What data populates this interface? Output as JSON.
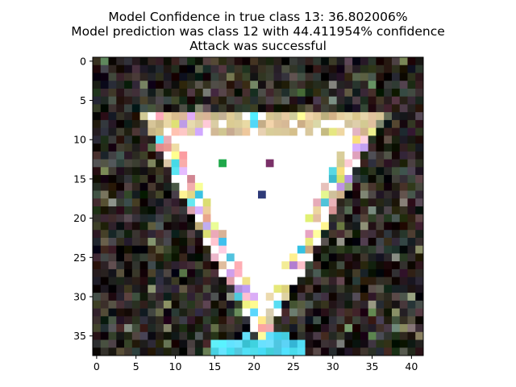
{
  "chart_data": {
    "type": "heatmap",
    "title_lines": [
      "Model Confidence in true class  13:     36.802006%",
      "Model prediction was class   12 with 44.411954% confidence",
      "Attack was successful"
    ],
    "image": {
      "columns": 42,
      "rows": 38,
      "content": "Adversarially perturbed traffic sign: white inverted triangle with pastel pixel noise on a dark textured background",
      "palette": {
        "background_dark": "#1f1b17",
        "background_mid": "#3a3530",
        "sign_white": "#ffffff",
        "border_tan": "#d8c49a",
        "noise_pink": "#f2b7c4",
        "noise_yellow": "#f6f08a",
        "noise_cyan": "#4fd4ee",
        "noise_blue": "#2c3f8f",
        "marker_green": "#1fa84a",
        "marker_purple": "#7a3068",
        "marker_navy": "#2e3a78"
      }
    },
    "x_axis": {
      "ticks": [
        "0",
        "5",
        "10",
        "15",
        "20",
        "25",
        "30",
        "35",
        "40"
      ],
      "range": [
        -0.5,
        41.5
      ]
    },
    "y_axis": {
      "ticks": [
        "0",
        "5",
        "10",
        "15",
        "20",
        "25",
        "30",
        "35"
      ],
      "range": [
        -0.5,
        37.5
      ],
      "inverted": true
    }
  }
}
